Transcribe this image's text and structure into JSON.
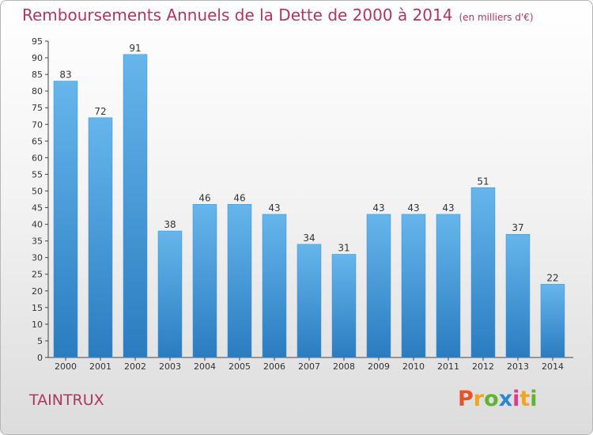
{
  "header": {
    "title": "Remboursements Annuels de la Dette de 2000 à 2014",
    "subtitle": "(en milliers d'€)"
  },
  "footer": {
    "commune": "TAINTRUX",
    "logo_letters": [
      "P",
      "r",
      "o",
      "x",
      "i",
      "t",
      "i"
    ],
    "logo_colors": [
      "#e5532b",
      "#f0a41f",
      "#5fb530",
      "#2f86d0",
      "#e03a8a",
      "#f0a41f",
      "#5fb530"
    ]
  },
  "colors": {
    "bar": "#4ea1df",
    "bar_light": "#66b6ec",
    "bar_dark": "#2a7cc0",
    "title": "#b0365e",
    "axis": "#444444"
  },
  "chart_data": {
    "type": "bar",
    "categories": [
      "2000",
      "2001",
      "2002",
      "2003",
      "2004",
      "2005",
      "2006",
      "2007",
      "2008",
      "2009",
      "2010",
      "2011",
      "2012",
      "2013",
      "2014"
    ],
    "values": [
      83,
      72,
      91,
      38,
      46,
      46,
      43,
      34,
      31,
      43,
      43,
      43,
      51,
      37,
      22
    ],
    "ylim": [
      0,
      95
    ],
    "yticks": [
      0,
      5,
      10,
      15,
      20,
      25,
      30,
      35,
      40,
      45,
      50,
      55,
      60,
      65,
      70,
      75,
      80,
      85,
      90,
      95
    ],
    "grid": false,
    "legend": "none"
  }
}
